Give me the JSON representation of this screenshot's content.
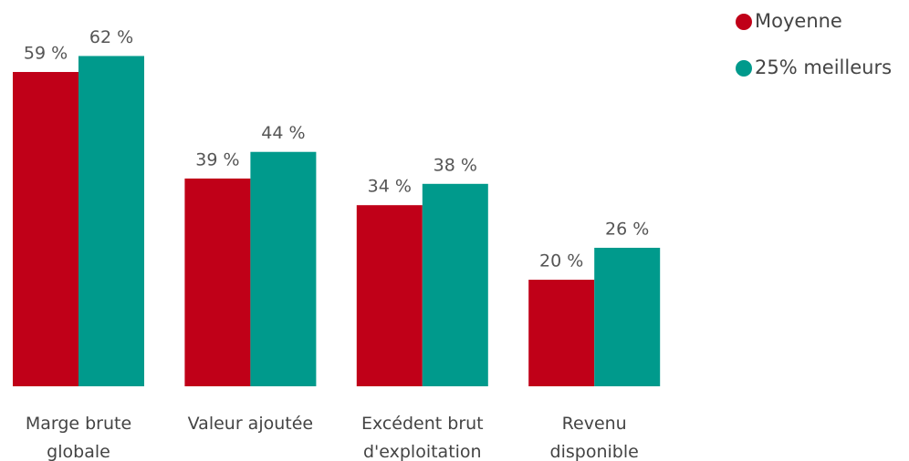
{
  "chart_data": {
    "type": "bar",
    "categories": [
      "Marge brute globale",
      "Valeur ajoutée",
      "Excédent brut d'exploitation",
      "Revenu disponible"
    ],
    "series": [
      {
        "name": "Moyenne",
        "color": "#c00018",
        "values": [
          59,
          39,
          34,
          20
        ],
        "value_labels": [
          "59 %",
          "39 %",
          "34 %",
          "20 %"
        ]
      },
      {
        "name": "25% meilleurs",
        "color": "#009a8c",
        "values": [
          62,
          44,
          38,
          26
        ],
        "value_labels": [
          "62 %",
          "44 %",
          "38 %",
          "26 %"
        ]
      }
    ],
    "ylim": [
      0,
      72
    ],
    "legend": "top-right"
  }
}
